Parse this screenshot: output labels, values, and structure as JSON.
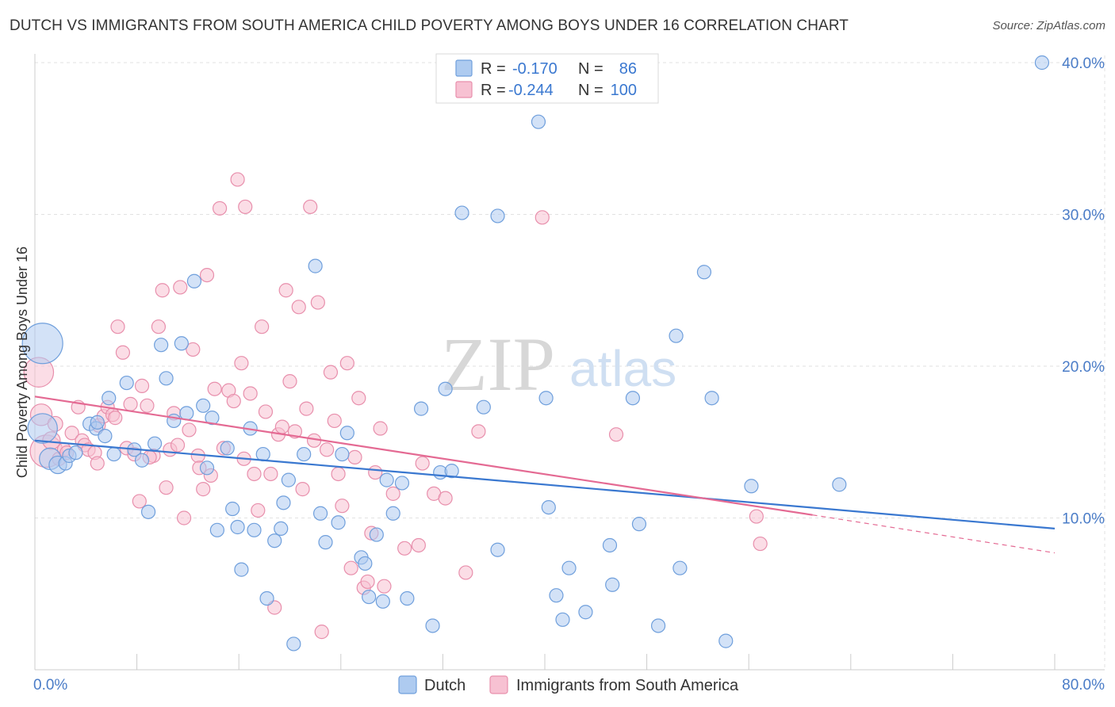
{
  "title": "DUTCH VS IMMIGRANTS FROM SOUTH AMERICA CHILD POVERTY AMONG BOYS UNDER 16 CORRELATION CHART",
  "source": "Source: ZipAtlas.com",
  "watermark": {
    "zip": "ZIP",
    "atlas": "atlas"
  },
  "colors": {
    "dutch_fill": "#aecbf0",
    "dutch_stroke": "#6f9fdc",
    "dutch_line": "#3a78d0",
    "sa_fill": "#f7c1d2",
    "sa_stroke": "#e88fac",
    "sa_line": "#e46a93",
    "value_text": "#3a78d0",
    "grid": "#e2e2e2"
  },
  "legend_top": {
    "rows": [
      {
        "r_label": "R =",
        "r_value": "-0.170",
        "n_label": "N =",
        "n_value": "86"
      },
      {
        "r_label": "R =",
        "r_value": "-0.244",
        "n_label": "N =",
        "n_value": "100"
      }
    ]
  },
  "chart_data": {
    "type": "scatter",
    "title": "DUTCH VS IMMIGRANTS FROM SOUTH AMERICA CHILD POVERTY AMONG BOYS UNDER 16 CORRELATION CHART",
    "xlabel": "",
    "ylabel": "Child Poverty Among Boys Under 16",
    "xlim": [
      0,
      80
    ],
    "ylim": [
      0,
      40
    ],
    "x_tick_labels": [
      "0.0%",
      "80.0%"
    ],
    "y_ticks": [
      10,
      20,
      30,
      40
    ],
    "y_tick_labels": [
      "10.0%",
      "20.0%",
      "30.0%",
      "40.0%"
    ],
    "grid": true,
    "legend_position": "bottom",
    "series": [
      {
        "name": "Dutch",
        "r": -0.17,
        "n": 86,
        "trend": {
          "x": [
            0,
            80
          ],
          "y": [
            15.1,
            9.3
          ]
        },
        "points": [
          [
            0.6,
            21.5,
            3
          ],
          [
            0.6,
            15.9,
            2.2
          ],
          [
            1.2,
            13.9,
            1.6
          ],
          [
            1.8,
            13.5,
            1.3
          ],
          [
            2.4,
            13.6,
            1
          ],
          [
            2.7,
            14.1,
            1
          ],
          [
            3.2,
            14.3,
            1
          ],
          [
            4.3,
            16.2,
            1
          ],
          [
            4.8,
            15.9,
            1
          ],
          [
            4.9,
            16.3,
            1
          ],
          [
            5.5,
            15.4,
            1
          ],
          [
            5.8,
            17.9,
            1
          ],
          [
            6.2,
            14.2,
            1
          ],
          [
            7.2,
            18.9,
            1
          ],
          [
            7.8,
            14.5,
            1
          ],
          [
            8.4,
            13.8,
            1
          ],
          [
            8.9,
            10.4,
            1
          ],
          [
            9.4,
            14.9,
            1
          ],
          [
            9.9,
            21.4,
            1
          ],
          [
            10.3,
            19.2,
            1
          ],
          [
            10.9,
            16.4,
            1
          ],
          [
            11.5,
            21.5,
            1
          ],
          [
            11.9,
            16.9,
            1
          ],
          [
            12.5,
            25.6,
            1
          ],
          [
            13.2,
            17.4,
            1
          ],
          [
            13.5,
            13.3,
            1
          ],
          [
            13.9,
            16.6,
            1
          ],
          [
            14.3,
            9.2,
            1
          ],
          [
            15.1,
            14.6,
            1
          ],
          [
            15.5,
            10.6,
            1
          ],
          [
            15.9,
            9.4,
            1
          ],
          [
            16.2,
            6.6,
            1
          ],
          [
            16.9,
            15.9,
            1
          ],
          [
            17.2,
            9.2,
            1
          ],
          [
            17.9,
            14.2,
            1
          ],
          [
            18.2,
            4.7,
            1
          ],
          [
            18.8,
            8.5,
            1
          ],
          [
            19.3,
            9.3,
            1
          ],
          [
            19.5,
            11.0,
            1
          ],
          [
            19.9,
            12.5,
            1
          ],
          [
            20.3,
            1.7,
            1
          ],
          [
            21.1,
            14.2,
            1
          ],
          [
            22.0,
            26.6,
            1
          ],
          [
            22.4,
            10.3,
            1
          ],
          [
            22.8,
            8.4,
            1
          ],
          [
            23.8,
            9.7,
            1
          ],
          [
            24.1,
            14.2,
            1
          ],
          [
            24.5,
            15.6,
            1
          ],
          [
            25.6,
            7.4,
            1
          ],
          [
            25.9,
            7.0,
            1
          ],
          [
            26.2,
            4.8,
            1
          ],
          [
            26.8,
            8.9,
            1
          ],
          [
            27.3,
            4.5,
            1
          ],
          [
            27.6,
            12.5,
            1
          ],
          [
            28.1,
            10.3,
            1
          ],
          [
            28.8,
            12.3,
            1
          ],
          [
            29.2,
            4.7,
            1
          ],
          [
            30.3,
            17.2,
            1
          ],
          [
            31.2,
            2.9,
            1
          ],
          [
            31.8,
            13.0,
            1
          ],
          [
            32.2,
            18.5,
            1
          ],
          [
            32.7,
            13.1,
            1
          ],
          [
            33.5,
            30.1,
            1
          ],
          [
            35.2,
            17.3,
            1
          ],
          [
            36.3,
            7.9,
            1
          ],
          [
            36.3,
            29.9,
            1
          ],
          [
            39.5,
            36.1,
            1
          ],
          [
            40.1,
            17.9,
            1
          ],
          [
            40.3,
            10.7,
            1
          ],
          [
            40.9,
            4.9,
            1
          ],
          [
            41.4,
            3.3,
            1
          ],
          [
            41.9,
            6.7,
            1
          ],
          [
            43.2,
            3.8,
            1
          ],
          [
            45.1,
            8.2,
            1
          ],
          [
            45.3,
            5.6,
            1
          ],
          [
            46.9,
            17.9,
            1
          ],
          [
            47.4,
            9.6,
            1
          ],
          [
            48.9,
            2.9,
            1
          ],
          [
            50.3,
            22.0,
            1
          ],
          [
            50.6,
            6.7,
            1
          ],
          [
            52.5,
            26.2,
            1
          ],
          [
            53.1,
            17.9,
            1
          ],
          [
            54.2,
            1.9,
            1
          ],
          [
            56.2,
            12.1,
            1
          ],
          [
            63.1,
            12.2,
            1
          ],
          [
            79.0,
            40.0,
            1
          ]
        ]
      },
      {
        "name": "Immigrants from South America",
        "r": -0.244,
        "n": 100,
        "trend": {
          "x": [
            0,
            61
          ],
          "y": [
            18.0,
            10.2
          ]
        },
        "trend_dashed": {
          "x": [
            61,
            80
          ],
          "y": [
            10.2,
            7.7
          ]
        },
        "points": [
          [
            0.3,
            19.6,
            2.2
          ],
          [
            0.5,
            16.8,
            1.6
          ],
          [
            0.9,
            14.4,
            2.4
          ],
          [
            1.3,
            15.1,
            1.3
          ],
          [
            1.6,
            16.2,
            1.1
          ],
          [
            1.9,
            13.9,
            1
          ],
          [
            2.3,
            14.5,
            1
          ],
          [
            2.5,
            14.3,
            1
          ],
          [
            2.9,
            15.6,
            1
          ],
          [
            3.4,
            17.3,
            1
          ],
          [
            3.7,
            15.1,
            1
          ],
          [
            3.9,
            14.8,
            1
          ],
          [
            4.2,
            14.5,
            1
          ],
          [
            4.7,
            14.3,
            1
          ],
          [
            4.9,
            13.6,
            1
          ],
          [
            5.0,
            16.1,
            1
          ],
          [
            5.4,
            16.7,
            1
          ],
          [
            5.7,
            17.3,
            1
          ],
          [
            6.1,
            16.8,
            1
          ],
          [
            6.3,
            16.6,
            1
          ],
          [
            6.5,
            22.6,
            1
          ],
          [
            6.9,
            20.9,
            1
          ],
          [
            7.2,
            14.6,
            1
          ],
          [
            7.5,
            17.5,
            1
          ],
          [
            7.8,
            14.2,
            1
          ],
          [
            8.2,
            11.1,
            1
          ],
          [
            8.4,
            18.7,
            1
          ],
          [
            8.8,
            17.4,
            1
          ],
          [
            9.3,
            14.1,
            1
          ],
          [
            9.7,
            22.6,
            1
          ],
          [
            10.0,
            25.0,
            1
          ],
          [
            10.3,
            12.0,
            1
          ],
          [
            10.6,
            14.5,
            1
          ],
          [
            10.9,
            16.9,
            1
          ],
          [
            11.2,
            14.8,
            1
          ],
          [
            11.4,
            25.2,
            1
          ],
          [
            11.7,
            10.0,
            1
          ],
          [
            12.1,
            15.8,
            1
          ],
          [
            12.4,
            21.1,
            1
          ],
          [
            12.8,
            14.1,
            1
          ],
          [
            13.2,
            11.9,
            1
          ],
          [
            13.5,
            26.0,
            1
          ],
          [
            13.8,
            12.8,
            1
          ],
          [
            14.1,
            18.5,
            1
          ],
          [
            14.5,
            30.4,
            1
          ],
          [
            14.8,
            14.6,
            1
          ],
          [
            15.2,
            18.4,
            1
          ],
          [
            15.6,
            17.7,
            1
          ],
          [
            15.9,
            32.3,
            1
          ],
          [
            16.2,
            20.2,
            1
          ],
          [
            16.5,
            30.5,
            1
          ],
          [
            16.9,
            18.2,
            1
          ],
          [
            17.2,
            12.9,
            1
          ],
          [
            17.5,
            10.5,
            1
          ],
          [
            17.8,
            22.6,
            1
          ],
          [
            18.1,
            17.0,
            1
          ],
          [
            18.5,
            12.9,
            1
          ],
          [
            18.8,
            4.1,
            1
          ],
          [
            19.1,
            15.5,
            1
          ],
          [
            19.4,
            16.0,
            1
          ],
          [
            19.7,
            25.0,
            1
          ],
          [
            20.0,
            19.0,
            1
          ],
          [
            20.4,
            15.7,
            1
          ],
          [
            20.7,
            23.9,
            1
          ],
          [
            21.0,
            11.9,
            1
          ],
          [
            21.3,
            17.2,
            1
          ],
          [
            21.6,
            30.5,
            1
          ],
          [
            21.9,
            15.1,
            1
          ],
          [
            22.2,
            24.2,
            1
          ],
          [
            22.5,
            2.5,
            1
          ],
          [
            22.9,
            14.5,
            1
          ],
          [
            23.2,
            19.6,
            1
          ],
          [
            23.5,
            16.4,
            1
          ],
          [
            23.8,
            12.9,
            1
          ],
          [
            24.1,
            10.8,
            1
          ],
          [
            24.5,
            20.2,
            1
          ],
          [
            24.8,
            6.7,
            1
          ],
          [
            25.1,
            14.0,
            1
          ],
          [
            25.4,
            17.9,
            1
          ],
          [
            25.8,
            5.4,
            1
          ],
          [
            26.1,
            5.8,
            1
          ],
          [
            26.4,
            9.0,
            1
          ],
          [
            26.7,
            13.0,
            1
          ],
          [
            27.1,
            15.9,
            1
          ],
          [
            27.4,
            5.5,
            1
          ],
          [
            28.1,
            11.6,
            1
          ],
          [
            29.0,
            8.0,
            1
          ],
          [
            30.1,
            8.2,
            1
          ],
          [
            31.3,
            11.6,
            1
          ],
          [
            32.2,
            11.3,
            1
          ],
          [
            33.8,
            6.4,
            1
          ],
          [
            34.8,
            15.7,
            1
          ],
          [
            39.8,
            29.8,
            1
          ],
          [
            45.6,
            15.5,
            1
          ],
          [
            56.6,
            10.1,
            1
          ],
          [
            56.9,
            8.3,
            1
          ],
          [
            12.9,
            13.3,
            1
          ],
          [
            16.4,
            13.9,
            1
          ],
          [
            30.4,
            13.6,
            1
          ],
          [
            9.0,
            14.0,
            1
          ]
        ]
      }
    ]
  },
  "legend_bottom": {
    "items": [
      {
        "label": "Dutch"
      },
      {
        "label": "Immigrants from South America"
      }
    ]
  }
}
